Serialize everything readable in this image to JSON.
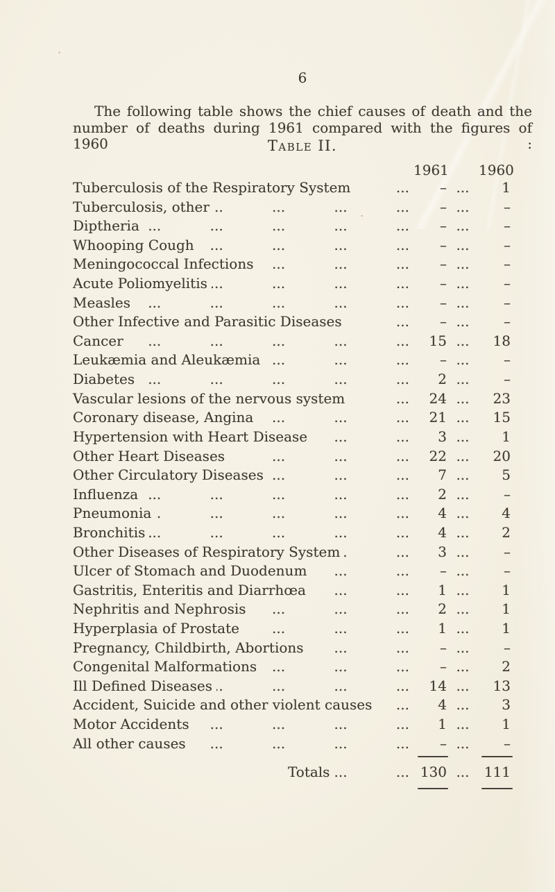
{
  "page": {
    "number": "6",
    "intro_lines": [
      "The following table shows the chief causes of death and the",
      "number of deaths during 1961 compared with the figures of 1960 :"
    ],
    "table_title": "Table II."
  },
  "table": {
    "year_headers": [
      "1961",
      "1960"
    ],
    "dot_leader": "...",
    "nil_symbol": "–",
    "rows": [
      {
        "cause": "Tuberculosis of the Respiratory System",
        "v1961": "–",
        "v1960": "1"
      },
      {
        "cause": "Tuberculosis, other",
        "v1961": "–",
        "v1960": "–"
      },
      {
        "cause": "Diptheria",
        "v1961": "–",
        "v1960": "–"
      },
      {
        "cause": "Whooping Cough",
        "v1961": "–",
        "v1960": "–"
      },
      {
        "cause": "Meningococcal Infections",
        "v1961": "–",
        "v1960": "–"
      },
      {
        "cause": "Acute Poliomyelitis",
        "v1961": "–",
        "v1960": "–"
      },
      {
        "cause": "Measles",
        "v1961": "–",
        "v1960": "–"
      },
      {
        "cause": "Other Infective and Parasitic Diseases",
        "v1961": "–",
        "v1960": "–"
      },
      {
        "cause": "Cancer",
        "v1961": "15",
        "v1960": "18"
      },
      {
        "cause": "Leukæmia and Aleukæmia",
        "v1961": "–",
        "v1960": "–"
      },
      {
        "cause": "Diabetes",
        "v1961": "2",
        "v1960": "–"
      },
      {
        "cause": "Vascular lesions of the nervous system",
        "v1961": "24",
        "v1960": "23"
      },
      {
        "cause": "Coronary disease, Angina",
        "v1961": "21",
        "v1960": "15"
      },
      {
        "cause": "Hypertension with Heart Disease",
        "v1961": "3",
        "v1960": "1"
      },
      {
        "cause": "Other Heart Diseases",
        "v1961": "22",
        "v1960": "20"
      },
      {
        "cause": "Other Circulatory Diseases",
        "v1961": "7",
        "v1960": "5"
      },
      {
        "cause": "Influenza",
        "v1961": "2",
        "v1960": "–"
      },
      {
        "cause": "Pneumonia",
        "v1961": "4",
        "v1960": "4"
      },
      {
        "cause": "Bronchitis",
        "v1961": "4",
        "v1960": "2"
      },
      {
        "cause": "Other Diseases of Respiratory System",
        "v1961": "3",
        "v1960": "–"
      },
      {
        "cause": "Ulcer of Stomach and Duodenum",
        "v1961": "–",
        "v1960": "–"
      },
      {
        "cause": "Gastritis, Enteritis and Diarrhœa",
        "v1961": "1",
        "v1960": "1"
      },
      {
        "cause": "Nephritis and Nephrosis",
        "v1961": "2",
        "v1960": "1"
      },
      {
        "cause": "Hyperplasia of Prostate",
        "v1961": "1",
        "v1960": "1"
      },
      {
        "cause": "Pregnancy, Childbirth, Abortions",
        "v1961": "–",
        "v1960": "–"
      },
      {
        "cause": "Congenital Malformations",
        "v1961": "–",
        "v1960": "2"
      },
      {
        "cause": "Ill Defined Diseases",
        "v1961": "14",
        "v1960": "13"
      },
      {
        "cause": "Accident, Suicide and other violent causes",
        "v1961": "4",
        "v1960": "3"
      },
      {
        "cause": "Motor Accidents",
        "v1961": "1",
        "v1960": "1"
      },
      {
        "cause": "All other causes",
        "v1961": "–",
        "v1960": "–"
      }
    ],
    "totals": {
      "label": "Totals",
      "v1961": "130",
      "v1960": "111"
    }
  },
  "colors": {
    "paper": "#f4f0e3",
    "ink": "#3d3930"
  }
}
